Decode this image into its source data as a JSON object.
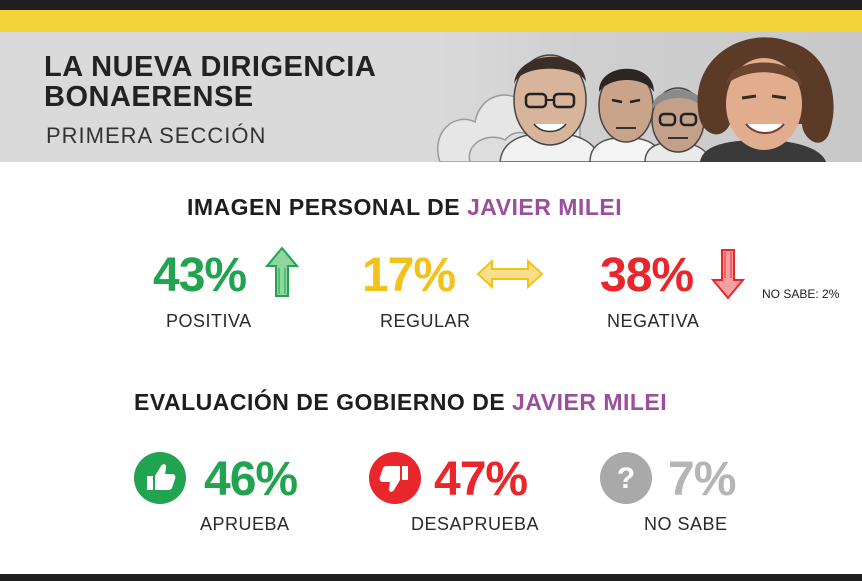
{
  "header": {
    "title_line1": "LA NUEVA DIRIGENCIA",
    "title_line2": "BONAERENSE",
    "subtitle": "PRIMERA SECCIÓN"
  },
  "imagen": {
    "title_prefix": "IMAGEN PERSONAL DE ",
    "title_name": "JAVIER MILEI",
    "positiva_value": "43%",
    "positiva_label": "POSITIVA",
    "regular_value": "17%",
    "regular_label": "REGULAR",
    "negativa_value": "38%",
    "negativa_label": "NEGATIVA",
    "no_sabe": "NO SABE: 2%"
  },
  "evaluacion": {
    "title_prefix": "EVALUACIÓN DE GOBIERNO DE ",
    "title_name": "JAVIER MILEI",
    "aprueba_value": "46%",
    "aprueba_label": "APRUEBA",
    "desaprueba_value": "47%",
    "desaprueba_label": "DESAPRUEBA",
    "nosabe_value": "7%",
    "nosabe_label": "NO SABE"
  },
  "colors": {
    "accent_purple": "#9b4d9e",
    "positive_green": "#22a350",
    "regular_yellow": "#f3c21a",
    "negative_red": "#e8262b",
    "neutral_gray": "#b5b5b5",
    "brand_yellow": "#f2d43a"
  },
  "icons": [
    "arrow-up-icon",
    "arrow-left-right-icon",
    "arrow-down-icon",
    "thumbs-up-icon",
    "thumbs-down-icon",
    "question-icon"
  ]
}
